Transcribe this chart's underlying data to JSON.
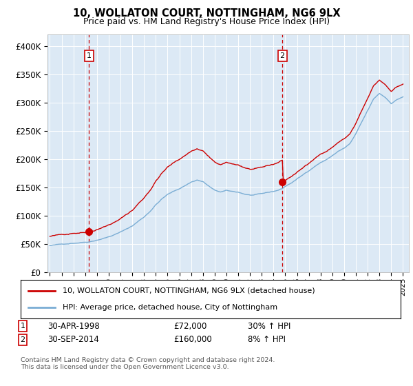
{
  "title": "10, WOLLATON COURT, NOTTINGHAM, NG6 9LX",
  "subtitle": "Price paid vs. HM Land Registry's House Price Index (HPI)",
  "legend_line1": "10, WOLLATON COURT, NOTTINGHAM, NG6 9LX (detached house)",
  "legend_line2": "HPI: Average price, detached house, City of Nottingham",
  "footer": "Contains HM Land Registry data © Crown copyright and database right 2024.\nThis data is licensed under the Open Government Licence v3.0.",
  "annotation1_label": "1",
  "annotation1_date": "30-APR-1998",
  "annotation1_price": "£72,000",
  "annotation1_hpi": "30% ↑ HPI",
  "annotation2_label": "2",
  "annotation2_date": "30-SEP-2014",
  "annotation2_price": "£160,000",
  "annotation2_hpi": "8% ↑ HPI",
  "sale1_x": 1998.33,
  "sale1_y": 72000,
  "sale2_x": 2014.75,
  "sale2_y": 160000,
  "vline1_x": 1998.33,
  "vline2_x": 2014.75,
  "hpi_color": "#7aadd4",
  "price_color": "#cc0000",
  "dot_color": "#cc0000",
  "vline_color": "#cc0000",
  "background_color": "#dce9f5",
  "ylim": [
    0,
    420000
  ],
  "xlim": [
    1994.8,
    2025.5
  ],
  "yticks": [
    0,
    50000,
    100000,
    150000,
    200000,
    250000,
    300000,
    350000,
    400000
  ],
  "figwidth": 6.0,
  "figheight": 5.6,
  "dpi": 100
}
